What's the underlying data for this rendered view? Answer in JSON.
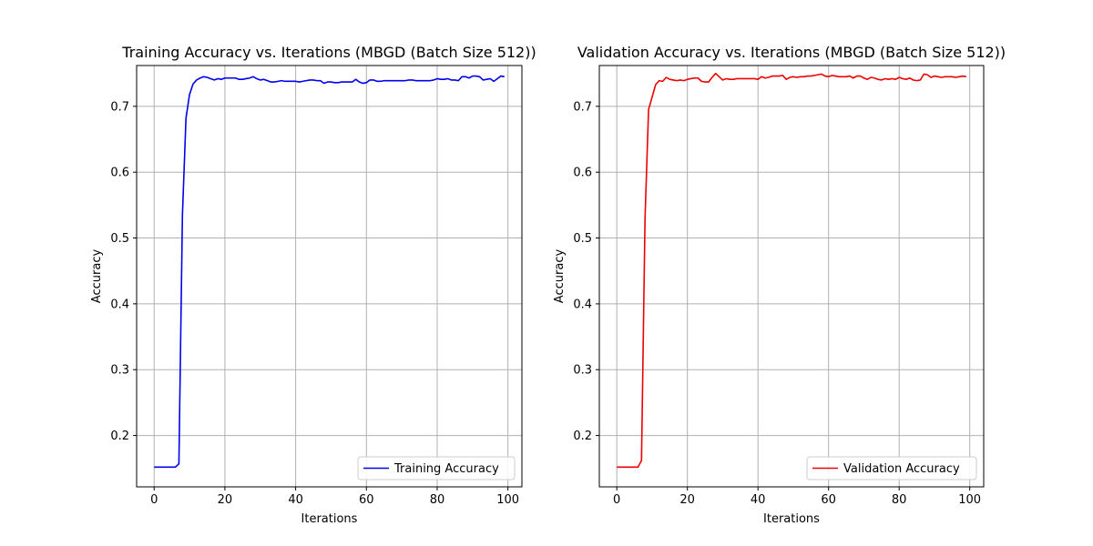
{
  "chart_data": [
    {
      "type": "line",
      "title": "Training Accuracy vs. Iterations (MBGD (Batch Size 512))",
      "xlabel": "Iterations",
      "ylabel": "Accuracy",
      "xlim": [
        -4.95,
        103.95
      ],
      "ylim": [
        0.122,
        0.762
      ],
      "xticks": [
        0,
        20,
        40,
        60,
        80,
        100
      ],
      "xtick_labels": [
        "0",
        "20",
        "40",
        "60",
        "80",
        "100"
      ],
      "yticks": [
        0.2,
        0.3,
        0.4,
        0.5,
        0.6,
        0.7
      ],
      "ytick_labels": [
        "0.2",
        "0.3",
        "0.4",
        "0.5",
        "0.6",
        "0.7"
      ],
      "grid": true,
      "legend_position": "lower-right",
      "colors": {
        "line": "#0000ee"
      },
      "series": [
        {
          "name": "Training Accuracy",
          "x": [
            0,
            1,
            2,
            3,
            4,
            5,
            6,
            7,
            8,
            9,
            10,
            11,
            12,
            13,
            14,
            15,
            16,
            17,
            18,
            19,
            20,
            21,
            22,
            23,
            24,
            25,
            26,
            27,
            28,
            29,
            30,
            31,
            32,
            33,
            34,
            35,
            36,
            37,
            38,
            39,
            40,
            41,
            42,
            43,
            44,
            45,
            46,
            47,
            48,
            49,
            50,
            51,
            52,
            53,
            54,
            55,
            56,
            57,
            58,
            59,
            60,
            61,
            62,
            63,
            64,
            65,
            66,
            67,
            68,
            69,
            70,
            71,
            72,
            73,
            74,
            75,
            76,
            77,
            78,
            79,
            80,
            81,
            82,
            83,
            84,
            85,
            86,
            87,
            88,
            89,
            90,
            91,
            92,
            93,
            94,
            95,
            96,
            97,
            98,
            99
          ],
          "values": [
            0.152,
            0.152,
            0.152,
            0.152,
            0.152,
            0.152,
            0.152,
            0.157,
            0.535,
            0.682,
            0.718,
            0.734,
            0.74,
            0.743,
            0.745,
            0.744,
            0.742,
            0.74,
            0.742,
            0.741,
            0.743,
            0.743,
            0.743,
            0.743,
            0.741,
            0.741,
            0.742,
            0.743,
            0.745,
            0.742,
            0.74,
            0.741,
            0.739,
            0.737,
            0.737,
            0.738,
            0.739,
            0.738,
            0.738,
            0.738,
            0.738,
            0.737,
            0.738,
            0.739,
            0.74,
            0.74,
            0.739,
            0.739,
            0.735,
            0.737,
            0.737,
            0.736,
            0.736,
            0.737,
            0.737,
            0.737,
            0.737,
            0.741,
            0.737,
            0.735,
            0.736,
            0.74,
            0.74,
            0.738,
            0.738,
            0.739,
            0.739,
            0.739,
            0.739,
            0.739,
            0.739,
            0.739,
            0.74,
            0.74,
            0.739,
            0.739,
            0.739,
            0.739,
            0.739,
            0.74,
            0.742,
            0.741,
            0.741,
            0.742,
            0.74,
            0.74,
            0.739,
            0.745,
            0.745,
            0.743,
            0.746,
            0.746,
            0.745,
            0.74,
            0.741,
            0.742,
            0.738,
            0.742,
            0.746,
            0.745
          ]
        }
      ]
    },
    {
      "type": "line",
      "title": "Validation Accuracy vs. Iterations (MBGD (Batch Size 512))",
      "xlabel": "Iterations",
      "ylabel": "Accuracy",
      "xlim": [
        -4.95,
        103.95
      ],
      "ylim": [
        0.122,
        0.762
      ],
      "xticks": [
        0,
        20,
        40,
        60,
        80,
        100
      ],
      "xtick_labels": [
        "0",
        "20",
        "40",
        "60",
        "80",
        "100"
      ],
      "yticks": [
        0.2,
        0.3,
        0.4,
        0.5,
        0.6,
        0.7
      ],
      "ytick_labels": [
        "0.2",
        "0.3",
        "0.4",
        "0.5",
        "0.6",
        "0.7"
      ],
      "grid": true,
      "legend_position": "lower-right",
      "colors": {
        "line": "#ee0000"
      },
      "series": [
        {
          "name": "Validation Accuracy",
          "x": [
            0,
            1,
            2,
            3,
            4,
            5,
            6,
            7,
            8,
            9,
            10,
            11,
            12,
            13,
            14,
            15,
            16,
            17,
            18,
            19,
            20,
            21,
            22,
            23,
            24,
            25,
            26,
            27,
            28,
            29,
            30,
            31,
            32,
            33,
            34,
            35,
            36,
            37,
            38,
            39,
            40,
            41,
            42,
            43,
            44,
            45,
            46,
            47,
            48,
            49,
            50,
            51,
            52,
            53,
            54,
            55,
            56,
            57,
            58,
            59,
            60,
            61,
            62,
            63,
            64,
            65,
            66,
            67,
            68,
            69,
            70,
            71,
            72,
            73,
            74,
            75,
            76,
            77,
            78,
            79,
            80,
            81,
            82,
            83,
            84,
            85,
            86,
            87,
            88,
            89,
            90,
            91,
            92,
            93,
            94,
            95,
            96,
            97,
            98,
            99
          ],
          "values": [
            0.152,
            0.152,
            0.152,
            0.152,
            0.152,
            0.152,
            0.152,
            0.162,
            0.53,
            0.695,
            0.714,
            0.733,
            0.739,
            0.738,
            0.744,
            0.741,
            0.74,
            0.739,
            0.74,
            0.739,
            0.741,
            0.742,
            0.743,
            0.743,
            0.738,
            0.737,
            0.737,
            0.744,
            0.75,
            0.745,
            0.74,
            0.742,
            0.741,
            0.741,
            0.742,
            0.742,
            0.742,
            0.742,
            0.742,
            0.742,
            0.741,
            0.745,
            0.743,
            0.744,
            0.746,
            0.746,
            0.746,
            0.747,
            0.741,
            0.744,
            0.745,
            0.744,
            0.745,
            0.745,
            0.746,
            0.746,
            0.747,
            0.748,
            0.749,
            0.746,
            0.745,
            0.747,
            0.746,
            0.745,
            0.745,
            0.745,
            0.746,
            0.743,
            0.746,
            0.746,
            0.743,
            0.741,
            0.744,
            0.743,
            0.741,
            0.74,
            0.742,
            0.741,
            0.742,
            0.741,
            0.744,
            0.742,
            0.741,
            0.743,
            0.74,
            0.739,
            0.74,
            0.749,
            0.748,
            0.744,
            0.746,
            0.745,
            0.744,
            0.745,
            0.745,
            0.745,
            0.744,
            0.745,
            0.746,
            0.745
          ]
        }
      ]
    }
  ]
}
